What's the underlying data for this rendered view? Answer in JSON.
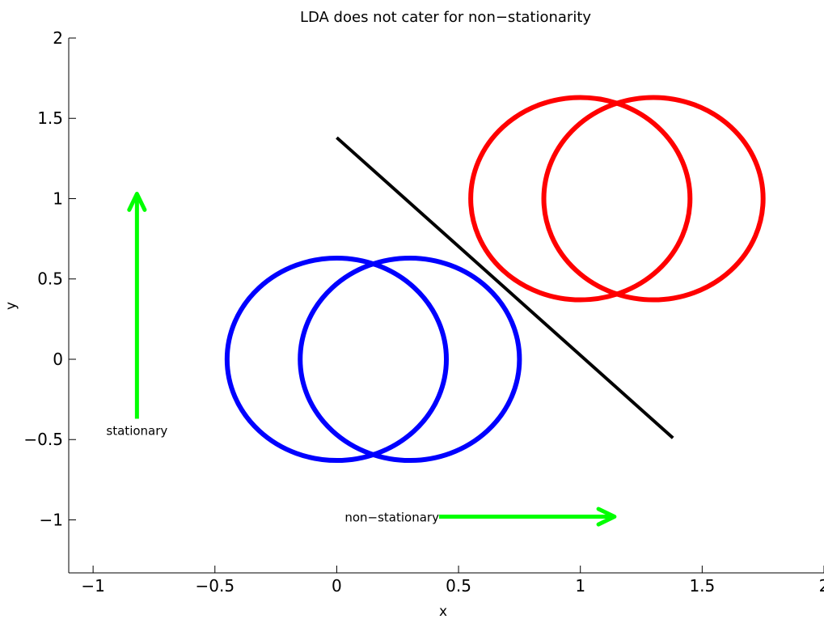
{
  "chart_data": {
    "type": "line",
    "title": "LDA does not cater for non−stationarity",
    "xlabel": "x",
    "ylabel": "y",
    "xlim": [
      -1.1,
      2.0
    ],
    "ylim": [
      -1.33,
      2.0
    ],
    "grid": false,
    "x_ticks": [
      -1,
      -0.5,
      0,
      0.5,
      1,
      1.5,
      2
    ],
    "y_ticks": [
      -1,
      -0.5,
      0,
      0.5,
      1,
      1.5,
      2
    ],
    "x_tick_labels": [
      "−1",
      "−0.5",
      "0",
      "0.5",
      "1",
      "1.5",
      "2"
    ],
    "y_tick_labels": [
      "−1",
      "−0.5",
      "0",
      "0.5",
      "1",
      "1.5",
      "2"
    ],
    "circles": [
      {
        "color": "#0000ff",
        "center": [
          0,
          0
        ],
        "radius_x": 0.45,
        "radius_y": 0.63
      },
      {
        "color": "#0000ff",
        "center": [
          0.3,
          0
        ],
        "radius_x": 0.45,
        "radius_y": 0.63
      },
      {
        "color": "#ff0000",
        "center": [
          1,
          1
        ],
        "radius_x": 0.45,
        "radius_y": 0.63
      },
      {
        "color": "#ff0000",
        "center": [
          1.3,
          1
        ],
        "radius_x": 0.45,
        "radius_y": 0.63
      }
    ],
    "decision_boundary": {
      "color": "#000000",
      "x": [
        0,
        1.38
      ],
      "y": [
        1.38,
        -0.49
      ]
    },
    "arrows": [
      {
        "color": "#00ff00",
        "from": [
          -0.82,
          -0.37
        ],
        "to": [
          -0.82,
          1.03
        ],
        "label": "stationary",
        "label_at": [
          -0.82,
          -0.44
        ]
      },
      {
        "color": "#00ff00",
        "from": [
          0.42,
          -0.98
        ],
        "to": [
          1.14,
          -0.98
        ],
        "label": "non−stationary",
        "label_at": [
          0.42,
          -0.98
        ]
      }
    ]
  }
}
